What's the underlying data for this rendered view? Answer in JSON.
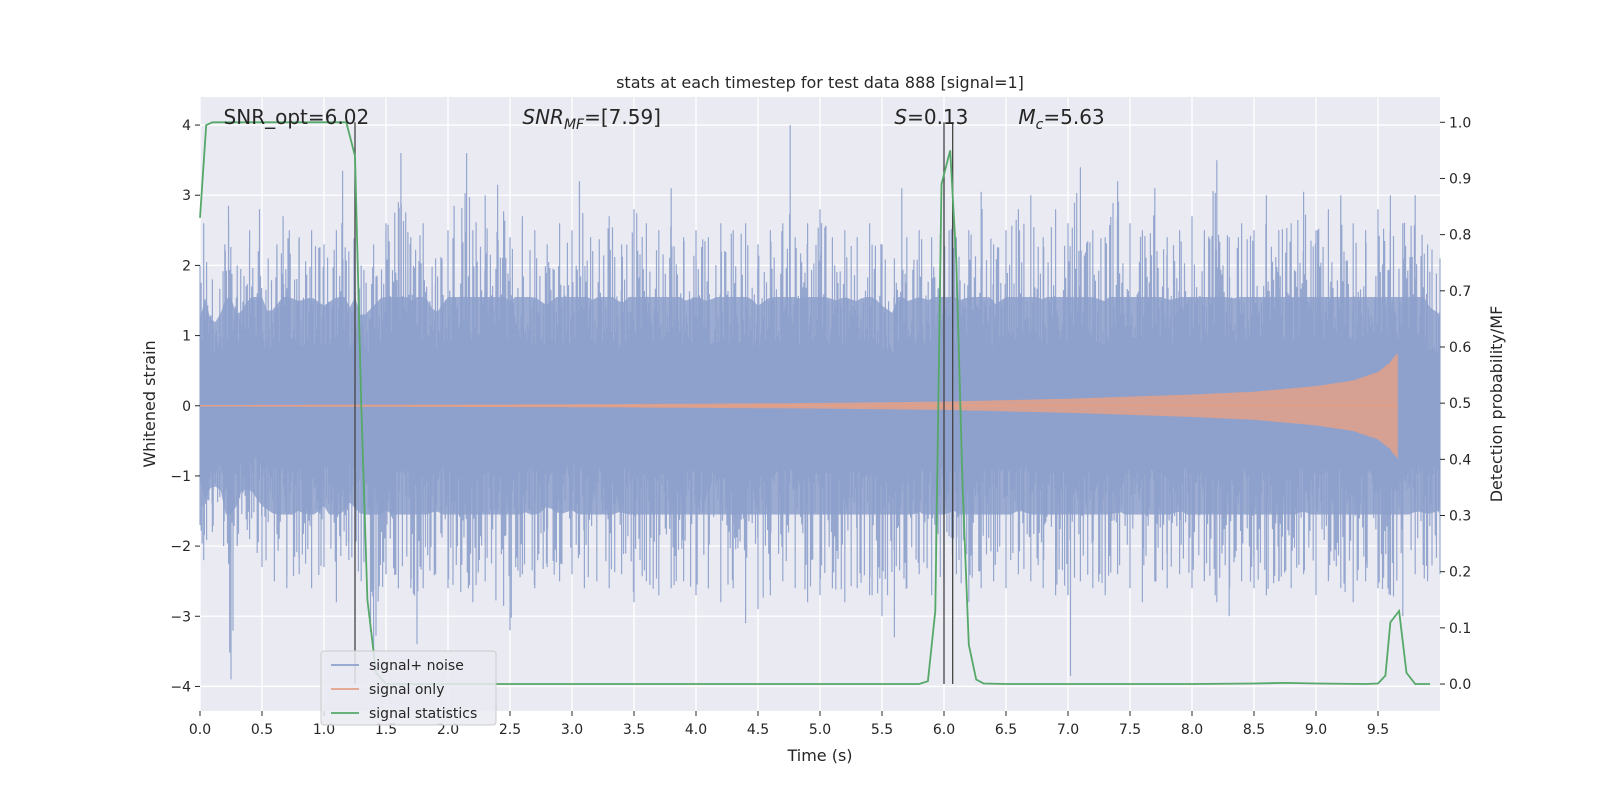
{
  "chart_data": {
    "type": "line",
    "title": "stats at each timestep for test data 888 [signal=1]",
    "xlabel": "Time (s)",
    "ylabel": "Whitened strain",
    "y2label": "Detection probability/MF",
    "xlim": [
      0.0,
      10.0
    ],
    "ylim": [
      -4.35,
      4.4
    ],
    "y2lim": [
      -0.048,
      1.045
    ],
    "xticks": [
      0.0,
      0.5,
      1.0,
      1.5,
      2.0,
      2.5,
      3.0,
      3.5,
      4.0,
      4.5,
      5.0,
      5.5,
      6.0,
      6.5,
      7.0,
      7.5,
      8.0,
      8.5,
      9.0,
      9.5
    ],
    "xtick_labels": [
      "0.0",
      "0.5",
      "1.0",
      "1.5",
      "2.0",
      "2.5",
      "3.0",
      "3.5",
      "4.0",
      "4.5",
      "5.0",
      "5.5",
      "6.0",
      "6.5",
      "7.0",
      "7.5",
      "8.0",
      "8.5",
      "9.0",
      "9.5"
    ],
    "yticks": [
      -4,
      -3,
      -2,
      -1,
      0,
      1,
      2,
      3,
      4
    ],
    "ytick_labels": [
      "−4",
      "−3",
      "−2",
      "−1",
      "0",
      "1",
      "2",
      "3",
      "4"
    ],
    "y2ticks": [
      0.0,
      0.1,
      0.2,
      0.3,
      0.4,
      0.5,
      0.6,
      0.7,
      0.8,
      0.9,
      1.0
    ],
    "y2tick_labels": [
      "0.0",
      "0.1",
      "0.2",
      "0.3",
      "0.4",
      "0.5",
      "0.6",
      "0.7",
      "0.8",
      "0.9",
      "1.0"
    ],
    "grid": true,
    "legend_position": "lower-left",
    "colors": {
      "plot_bg": "#eaeaf2",
      "grid": "#ffffff",
      "noise": "#8da0cb",
      "signal": "#e3a087",
      "statistics": "#55a868",
      "vline": "#444444"
    },
    "annotations": [
      {
        "text": "SNR_opt=6.02",
        "x": 0.19
      },
      {
        "text": "SNR",
        "sub": "MF",
        "value": "=[7.59]",
        "x": 2.6,
        "italic": true
      },
      {
        "text": "S",
        "value": "=0.13",
        "x": 5.6,
        "italic": true
      },
      {
        "text": "M",
        "sub": "c",
        "value": "=5.63",
        "x": 6.6,
        "italic": true
      }
    ],
    "vertical_lines": [
      1.25,
      6.0,
      6.07
    ],
    "series": [
      {
        "name": "signal+ noise",
        "axis": "left",
        "kind": "noise",
        "upper_envelope": [
          [
            0.0,
            2.0
          ],
          [
            0.03,
            2.6
          ],
          [
            0.1,
            1.8
          ],
          [
            0.2,
            2.3
          ],
          [
            0.23,
            2.85
          ],
          [
            0.3,
            2.0
          ],
          [
            0.4,
            2.5
          ],
          [
            0.48,
            2.8
          ],
          [
            0.55,
            2.1
          ],
          [
            0.62,
            2.3
          ],
          [
            0.67,
            2.7
          ],
          [
            0.72,
            2.5
          ],
          [
            0.8,
            2.4
          ],
          [
            0.9,
            2.5
          ],
          [
            1.0,
            2.3
          ],
          [
            1.1,
            2.5
          ],
          [
            1.15,
            3.35
          ],
          [
            1.2,
            2.2
          ],
          [
            1.25,
            2.55
          ],
          [
            1.3,
            2.0
          ],
          [
            1.4,
            2.3
          ],
          [
            1.5,
            2.6
          ],
          [
            1.6,
            2.9
          ],
          [
            1.62,
            3.6
          ],
          [
            1.7,
            2.4
          ],
          [
            1.8,
            2.6
          ],
          [
            1.9,
            2.1
          ],
          [
            2.0,
            2.5
          ],
          [
            2.15,
            3.6
          ],
          [
            2.2,
            2.5
          ],
          [
            2.3,
            3.0
          ],
          [
            2.4,
            3.15
          ],
          [
            2.5,
            2.4
          ],
          [
            2.6,
            2.7
          ],
          [
            2.7,
            2.5
          ],
          [
            2.8,
            2.3
          ],
          [
            2.9,
            2.6
          ],
          [
            3.0,
            2.5
          ],
          [
            3.06,
            3.2
          ],
          [
            3.15,
            2.4
          ],
          [
            3.3,
            2.7
          ],
          [
            3.4,
            2.3
          ],
          [
            3.5,
            2.8
          ],
          [
            3.6,
            2.6
          ],
          [
            3.7,
            2.5
          ],
          [
            3.8,
            3.1
          ],
          [
            3.9,
            2.4
          ],
          [
            4.0,
            2.5
          ],
          [
            4.1,
            2.4
          ],
          [
            4.2,
            2.6
          ],
          [
            4.3,
            2.5
          ],
          [
            4.4,
            2.6
          ],
          [
            4.5,
            2.3
          ],
          [
            4.6,
            2.5
          ],
          [
            4.7,
            2.6
          ],
          [
            4.76,
            4.0
          ],
          [
            4.8,
            2.4
          ],
          [
            4.9,
            2.6
          ],
          [
            5.0,
            2.8
          ],
          [
            5.1,
            2.4
          ],
          [
            5.2,
            2.5
          ],
          [
            5.3,
            2.4
          ],
          [
            5.4,
            2.6
          ],
          [
            5.5,
            2.3
          ],
          [
            5.6,
            2.1
          ],
          [
            5.66,
            3.1
          ],
          [
            5.7,
            2.4
          ],
          [
            5.8,
            2.5
          ],
          [
            5.9,
            2.4
          ],
          [
            6.0,
            3.4
          ],
          [
            6.1,
            2.4
          ],
          [
            6.2,
            2.5
          ],
          [
            6.3,
            3.05
          ],
          [
            6.4,
            2.3
          ],
          [
            6.5,
            2.5
          ],
          [
            6.6,
            2.8
          ],
          [
            6.7,
            3.0
          ],
          [
            6.8,
            2.4
          ],
          [
            6.9,
            2.8
          ],
          [
            7.0,
            2.6
          ],
          [
            7.1,
            3.4
          ],
          [
            7.2,
            2.5
          ],
          [
            7.3,
            2.4
          ],
          [
            7.4,
            3.2
          ],
          [
            7.5,
            2.6
          ],
          [
            7.6,
            2.5
          ],
          [
            7.7,
            3.1
          ],
          [
            7.8,
            2.4
          ],
          [
            7.9,
            2.5
          ],
          [
            8.0,
            2.7
          ],
          [
            8.1,
            2.5
          ],
          [
            8.2,
            3.5
          ],
          [
            8.3,
            2.4
          ],
          [
            8.4,
            2.6
          ],
          [
            8.5,
            2.5
          ],
          [
            8.6,
            3.0
          ],
          [
            8.7,
            2.5
          ],
          [
            8.8,
            2.6
          ],
          [
            8.9,
            3.05
          ],
          [
            9.0,
            2.5
          ],
          [
            9.1,
            2.8
          ],
          [
            9.2,
            3.0
          ],
          [
            9.3,
            2.6
          ],
          [
            9.4,
            2.5
          ],
          [
            9.5,
            2.8
          ],
          [
            9.6,
            3.0
          ],
          [
            9.7,
            2.6
          ],
          [
            9.8,
            3.0
          ],
          [
            9.9,
            2.3
          ],
          [
            10.0,
            2.1
          ]
        ],
        "lower_envelope": [
          [
            0.0,
            -1.7
          ],
          [
            0.03,
            -2.2
          ],
          [
            0.1,
            -1.8
          ],
          [
            0.19,
            -2.0
          ],
          [
            0.25,
            -3.9
          ],
          [
            0.3,
            -2.0
          ],
          [
            0.4,
            -1.9
          ],
          [
            0.5,
            -2.3
          ],
          [
            0.6,
            -2.5
          ],
          [
            0.7,
            -2.6
          ],
          [
            0.8,
            -2.4
          ],
          [
            0.9,
            -2.6
          ],
          [
            1.0,
            -2.3
          ],
          [
            1.1,
            -2.8
          ],
          [
            1.2,
            -2.2
          ],
          [
            1.3,
            -2.5
          ],
          [
            1.4,
            -3.5
          ],
          [
            1.5,
            -2.4
          ],
          [
            1.6,
            -2.6
          ],
          [
            1.7,
            -2.6
          ],
          [
            1.75,
            -3.4
          ],
          [
            1.8,
            -2.6
          ],
          [
            1.9,
            -2.4
          ],
          [
            2.0,
            -2.6
          ],
          [
            2.2,
            -2.8
          ],
          [
            2.3,
            -2.5
          ],
          [
            2.5,
            -3.2
          ],
          [
            2.6,
            -2.4
          ],
          [
            2.7,
            -2.6
          ],
          [
            2.8,
            -2.3
          ],
          [
            2.9,
            -2.5
          ],
          [
            3.0,
            -2.4
          ],
          [
            3.1,
            -2.6
          ],
          [
            3.2,
            -2.5
          ],
          [
            3.3,
            -2.6
          ],
          [
            3.4,
            -2.4
          ],
          [
            3.5,
            -2.8
          ],
          [
            3.6,
            -2.5
          ],
          [
            3.7,
            -2.7
          ],
          [
            3.8,
            -2.6
          ],
          [
            3.9,
            -2.5
          ],
          [
            4.0,
            -2.7
          ],
          [
            4.1,
            -2.6
          ],
          [
            4.2,
            -2.8
          ],
          [
            4.3,
            -2.6
          ],
          [
            4.4,
            -3.1
          ],
          [
            4.5,
            -2.9
          ],
          [
            4.6,
            -2.7
          ],
          [
            4.7,
            -2.5
          ],
          [
            4.8,
            -2.6
          ],
          [
            4.9,
            -2.8
          ],
          [
            5.0,
            -2.7
          ],
          [
            5.1,
            -2.6
          ],
          [
            5.2,
            -2.8
          ],
          [
            5.3,
            -2.6
          ],
          [
            5.4,
            -2.7
          ],
          [
            5.5,
            -3.0
          ],
          [
            5.6,
            -3.3
          ],
          [
            5.7,
            -2.6
          ],
          [
            5.8,
            -2.4
          ],
          [
            5.9,
            -2.7
          ],
          [
            6.0,
            -2.5
          ],
          [
            6.1,
            -2.4
          ],
          [
            6.2,
            -2.8
          ],
          [
            6.3,
            -2.6
          ],
          [
            6.4,
            -2.5
          ],
          [
            6.5,
            -2.6
          ],
          [
            6.6,
            -2.4
          ],
          [
            6.7,
            -2.5
          ],
          [
            6.8,
            -2.6
          ],
          [
            6.9,
            -2.7
          ],
          [
            7.0,
            -2.7
          ],
          [
            7.02,
            -3.85
          ],
          [
            7.1,
            -2.5
          ],
          [
            7.2,
            -2.6
          ],
          [
            7.3,
            -2.7
          ],
          [
            7.4,
            -2.4
          ],
          [
            7.5,
            -2.6
          ],
          [
            7.6,
            -2.8
          ],
          [
            7.7,
            -2.5
          ],
          [
            7.8,
            -2.6
          ],
          [
            7.9,
            -2.4
          ],
          [
            8.0,
            -2.6
          ],
          [
            8.1,
            -2.5
          ],
          [
            8.2,
            -2.8
          ],
          [
            8.3,
            -3.0
          ],
          [
            8.4,
            -2.5
          ],
          [
            8.5,
            -2.6
          ],
          [
            8.6,
            -2.7
          ],
          [
            8.7,
            -2.5
          ],
          [
            8.8,
            -2.6
          ],
          [
            8.9,
            -2.4
          ],
          [
            9.0,
            -2.7
          ],
          [
            9.1,
            -2.5
          ],
          [
            9.2,
            -2.6
          ],
          [
            9.3,
            -2.8
          ],
          [
            9.4,
            -2.5
          ],
          [
            9.5,
            -2.6
          ],
          [
            9.6,
            -2.7
          ],
          [
            9.7,
            -3.0
          ],
          [
            9.8,
            -2.4
          ],
          [
            9.9,
            -2.5
          ],
          [
            10.0,
            -2.4
          ]
        ]
      },
      {
        "name": "signal only",
        "axis": "left",
        "kind": "chirp",
        "amplitude": [
          [
            0.0,
            0.01
          ],
          [
            3.0,
            0.02
          ],
          [
            5.0,
            0.04
          ],
          [
            6.0,
            0.06
          ],
          [
            7.0,
            0.1
          ],
          [
            8.0,
            0.16
          ],
          [
            8.5,
            0.2
          ],
          [
            9.0,
            0.28
          ],
          [
            9.3,
            0.36
          ],
          [
            9.5,
            0.48
          ],
          [
            9.6,
            0.62
          ],
          [
            9.65,
            0.75
          ]
        ],
        "end_time": 9.66
      },
      {
        "name": "signal statistics",
        "axis": "right",
        "kind": "line",
        "points": [
          [
            0.0,
            0.83
          ],
          [
            0.05,
            0.995
          ],
          [
            0.1,
            1.0
          ],
          [
            0.5,
            1.0
          ],
          [
            1.0,
            1.0
          ],
          [
            1.18,
            1.0
          ],
          [
            1.25,
            0.94
          ],
          [
            1.3,
            0.5
          ],
          [
            1.35,
            0.15
          ],
          [
            1.42,
            0.02
          ],
          [
            1.5,
            0.0
          ],
          [
            2.0,
            0.0
          ],
          [
            3.0,
            0.0
          ],
          [
            4.0,
            0.0
          ],
          [
            5.0,
            0.0
          ],
          [
            5.8,
            0.0
          ],
          [
            5.87,
            0.005
          ],
          [
            5.93,
            0.13
          ],
          [
            5.98,
            0.89
          ],
          [
            6.05,
            0.95
          ],
          [
            6.1,
            0.75
          ],
          [
            6.15,
            0.35
          ],
          [
            6.2,
            0.07
          ],
          [
            6.26,
            0.008
          ],
          [
            6.32,
            0.001
          ],
          [
            6.5,
            0.0
          ],
          [
            7.0,
            0.0
          ],
          [
            8.0,
            0.0
          ],
          [
            8.5,
            0.001
          ],
          [
            8.75,
            0.002
          ],
          [
            9.0,
            0.001
          ],
          [
            9.4,
            0.0
          ],
          [
            9.5,
            0.001
          ],
          [
            9.56,
            0.015
          ],
          [
            9.6,
            0.11
          ],
          [
            9.67,
            0.13
          ],
          [
            9.73,
            0.02
          ],
          [
            9.8,
            0.0
          ],
          [
            9.92,
            0.0
          ]
        ]
      }
    ]
  }
}
